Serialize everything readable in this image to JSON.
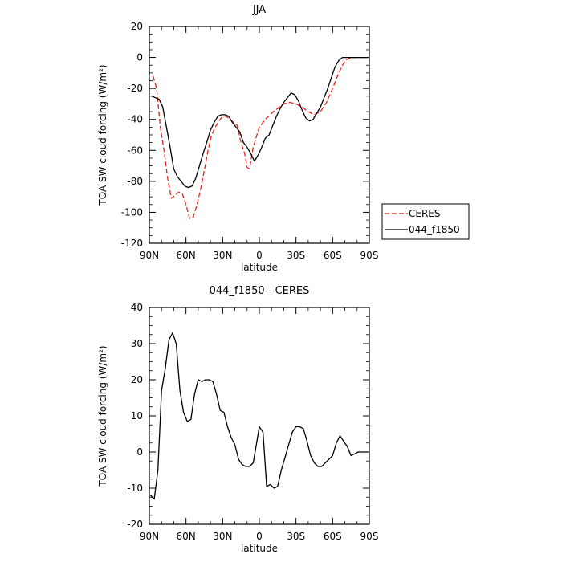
{
  "chart_data": [
    {
      "type": "line",
      "title": "JJA",
      "xlabel": "latitude",
      "ylabel": "TOA SW cloud forcing (W/m²)",
      "ylim": [
        -120,
        20
      ],
      "xlim": [
        90,
        -90
      ],
      "x_ticks": [
        {
          "value": 90,
          "label": "90N"
        },
        {
          "value": 60,
          "label": "60N"
        },
        {
          "value": 30,
          "label": "30N"
        },
        {
          "value": 0,
          "label": "0"
        },
        {
          "value": -30,
          "label": "30S"
        },
        {
          "value": -60,
          "label": "60S"
        },
        {
          "value": -90,
          "label": "90S"
        }
      ],
      "y_ticks": [
        20,
        0,
        -20,
        -40,
        -60,
        -80,
        -100,
        -120
      ],
      "legend_position": "outside-right",
      "series": [
        {
          "name": "CERES",
          "color": "#e8221b",
          "dash": "dashed",
          "x": [
            87,
            84,
            81,
            78,
            75,
            72,
            69,
            66,
            63,
            60,
            57,
            54,
            51,
            48,
            45,
            42,
            39,
            36,
            33,
            30,
            27,
            24,
            21,
            18,
            15,
            12,
            10,
            8,
            5,
            2,
            0,
            -5,
            -10,
            -15,
            -20,
            -25,
            -30,
            -35,
            -40,
            -45,
            -50,
            -55,
            -60,
            -65,
            -70,
            -75,
            -80,
            -85,
            -89
          ],
          "y": [
            -12,
            -20,
            -45,
            -60,
            -78,
            -91,
            -89,
            -87,
            -88,
            -95,
            -104,
            -103,
            -95,
            -85,
            -73,
            -60,
            -50,
            -45,
            -41,
            -38,
            -38,
            -40,
            -42,
            -44,
            -55,
            -62,
            -71,
            -72,
            -58,
            -50,
            -45,
            -40,
            -36,
            -33,
            -30,
            -29,
            -30,
            -32,
            -35,
            -37,
            -35,
            -29,
            -20,
            -10,
            -2,
            0,
            0,
            0,
            0
          ]
        },
        {
          "name": "044_f1850",
          "color": "#000000",
          "dash": "solid",
          "x": [
            88,
            85,
            82,
            79,
            76,
            73,
            70,
            67,
            64,
            61,
            58,
            55,
            52,
            49,
            46,
            43,
            40,
            37,
            34,
            31,
            28,
            25,
            22,
            19,
            16,
            13,
            10,
            7,
            4,
            1,
            -2,
            -5,
            -8,
            -11,
            -14,
            -17,
            -20,
            -23,
            -26,
            -29,
            -32,
            -35,
            -38,
            -41,
            -44,
            -47,
            -50,
            -53,
            -56,
            -59,
            -62,
            -65,
            -68,
            -71,
            -74,
            -77,
            -80,
            -83,
            -86,
            -89
          ],
          "y": [
            -25,
            -26,
            -27,
            -32,
            -45,
            -58,
            -72,
            -77,
            -80,
            -83,
            -84,
            -83,
            -78,
            -70,
            -62,
            -55,
            -47,
            -42,
            -38,
            -37,
            -37,
            -38,
            -42,
            -45,
            -48,
            -55,
            -58,
            -62,
            -67,
            -63,
            -58,
            -52,
            -50,
            -44,
            -38,
            -33,
            -29,
            -26,
            -23,
            -24,
            -28,
            -34,
            -39,
            -41,
            -40,
            -36,
            -32,
            -26,
            -20,
            -13,
            -6,
            -2,
            0,
            0,
            0,
            0,
            0,
            0,
            0,
            0
          ]
        }
      ]
    },
    {
      "type": "line",
      "title": "044_f1850 - CERES",
      "xlabel": "latitude",
      "ylabel": "TOA SW cloud forcing (W/m²)",
      "ylim": [
        -20,
        40
      ],
      "xlim": [
        90,
        -90
      ],
      "x_ticks": [
        {
          "value": 90,
          "label": "90N"
        },
        {
          "value": 60,
          "label": "60N"
        },
        {
          "value": 30,
          "label": "30N"
        },
        {
          "value": 0,
          "label": "0"
        },
        {
          "value": -30,
          "label": "30S"
        },
        {
          "value": -60,
          "label": "60S"
        },
        {
          "value": -90,
          "label": "90S"
        }
      ],
      "y_ticks": [
        40,
        30,
        20,
        10,
        0,
        -10,
        -20
      ],
      "series": [
        {
          "color": "#000000",
          "dash": "solid",
          "x": [
            89,
            86,
            83,
            80,
            77,
            74,
            71,
            68,
            65,
            62,
            59,
            56,
            53,
            50,
            47,
            44,
            41,
            38,
            35,
            32,
            29,
            26,
            23,
            20,
            17,
            14,
            11,
            8,
            5,
            2,
            0,
            -3,
            -6,
            -9,
            -12,
            -15,
            -18,
            -21,
            -24,
            -27,
            -30,
            -33,
            -36,
            -39,
            -42,
            -45,
            -48,
            -51,
            -54,
            -57,
            -60,
            -63,
            -66,
            -69,
            -72,
            -75,
            -78,
            -81,
            -84,
            -87,
            -89
          ],
          "y": [
            -12,
            -13,
            -5,
            17,
            23,
            31,
            33,
            30,
            17,
            11,
            8.5,
            9,
            16,
            20,
            19.5,
            20,
            20,
            19.5,
            16,
            11.5,
            11,
            7,
            4,
            2,
            -2,
            -3.5,
            -4,
            -4,
            -3,
            3,
            7,
            5.5,
            -9.5,
            -9,
            -10,
            -9.5,
            -5,
            -1.5,
            2,
            5.5,
            7,
            7,
            6.5,
            3,
            -1,
            -3,
            -4,
            -4,
            -3,
            -2,
            -1,
            2.5,
            4.5,
            3,
            1.5,
            -1,
            -0.5,
            0,
            0,
            0,
            0
          ]
        }
      ]
    }
  ]
}
